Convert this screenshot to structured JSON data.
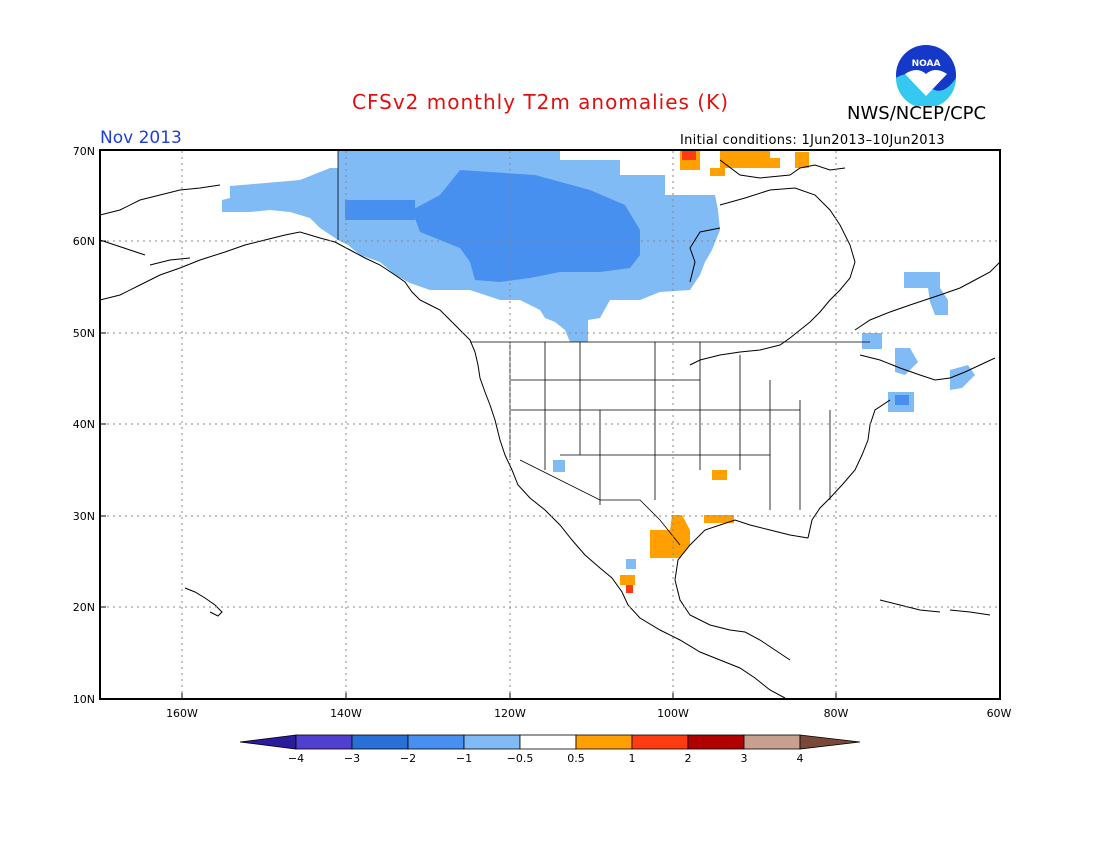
{
  "title": "CFSv2 monthly T2m anomalies (K)",
  "organization": "NWS/NCEP/CPC",
  "logo_text": "NOAA",
  "valid_month": "Nov 2013",
  "initial_conditions": "Initial conditions: 1Jun2013–10Jun2013",
  "lat_labels": [
    "70N",
    "60N",
    "50N",
    "40N",
    "30N",
    "20N",
    "10N"
  ],
  "lon_labels": [
    "160W",
    "140W",
    "120W",
    "100W",
    "80W",
    "60W"
  ],
  "legend": {
    "labels": [
      "−4",
      "−3",
      "−2",
      "−1",
      "−0.5",
      "0.5",
      "1",
      "2",
      "3",
      "4"
    ],
    "colors": [
      "#2a1c9a",
      "#5040d0",
      "#2870d8",
      "#4890f0",
      "#80bbf6",
      "#ffffff",
      "#ffa000",
      "#ff3c10",
      "#b00000",
      "#c8a090",
      "#7a4838"
    ]
  },
  "colors": {
    "cool_light": "#80bbf6",
    "cool_mid": "#4890f0",
    "warm_orange": "#ffa000",
    "warm_red": "#ff3c10",
    "title_red": "#e01010",
    "month_blue": "#1d3fd6"
  }
}
